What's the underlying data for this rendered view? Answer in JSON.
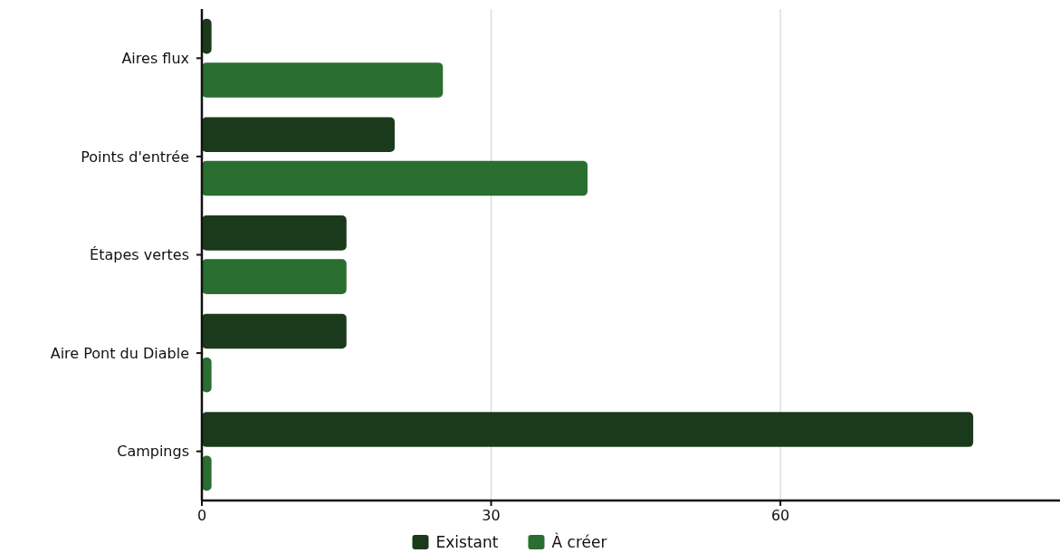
{
  "chart_data": {
    "type": "bar",
    "orientation": "horizontal",
    "categories": [
      "Aires flux",
      "Points d'entrée",
      "Étapes vertes",
      "Aire Pont du Diable",
      "Campings"
    ],
    "series": [
      {
        "name": "Existant",
        "color": "#1b3a1b",
        "values": [
          1,
          20,
          15,
          15,
          80
        ]
      },
      {
        "name": "À créer",
        "color": "#2a6e30",
        "values": [
          25,
          40,
          15,
          1,
          1
        ]
      }
    ],
    "xlim": [
      0,
      89
    ],
    "xticks": [
      0,
      30,
      60
    ],
    "grid": "x",
    "legend": "bottom"
  }
}
